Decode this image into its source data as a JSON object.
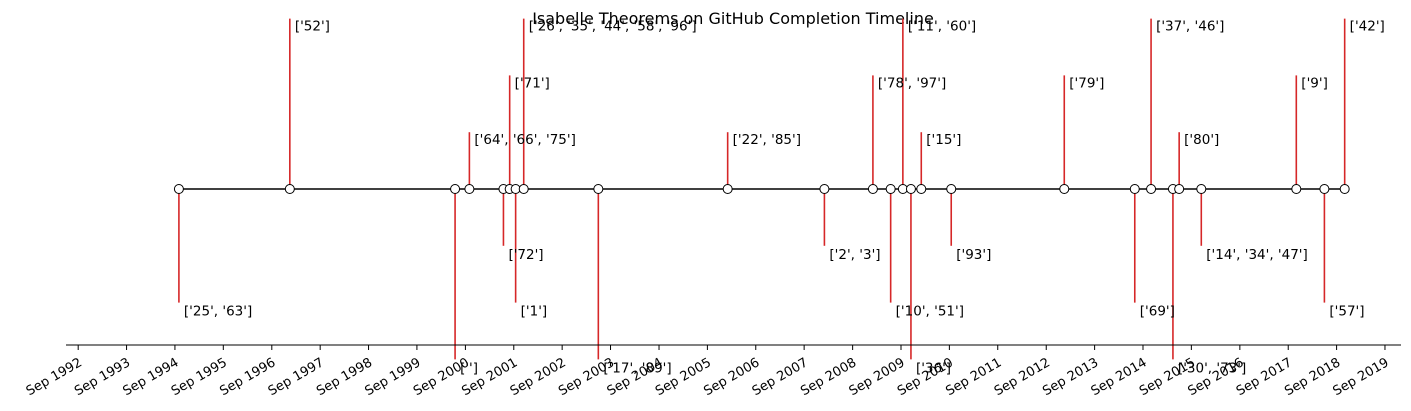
{
  "chart_data": {
    "type": "timeline",
    "title": "Isabelle Theorems on GitHub Completion Timeline",
    "x_ticks": [
      "Sep 1992",
      "Sep 1993",
      "Sep 1994",
      "Sep 1995",
      "Sep 1996",
      "Sep 1997",
      "Sep 1998",
      "Sep 1999",
      "Sep 2000",
      "Sep 2001",
      "Sep 2002",
      "Sep 2003",
      "Sep 2004",
      "Sep 2005",
      "Sep 2006",
      "Sep 2007",
      "Sep 2008",
      "Sep 2009",
      "Sep 2010",
      "Sep 2011",
      "Sep 2012",
      "Sep 2013",
      "Sep 2014",
      "Sep 2015",
      "Sep 2016",
      "Sep 2017",
      "Sep 2018",
      "Sep 2019"
    ],
    "xlim": [
      "1992-06-01",
      "2019-12-31"
    ],
    "stem_levels": [
      -3,
      -2,
      -1,
      1,
      2,
      3
    ],
    "events": [
      {
        "date": "1994-10-01",
        "level": -2,
        "label": "['25', '63']"
      },
      {
        "date": "1997-01-15",
        "level": 3,
        "label": "['52']"
      },
      {
        "date": "2000-06-15",
        "level": -3,
        "label": "['']"
      },
      {
        "date": "2000-10-01",
        "level": 1,
        "label": "['64', '66', '75']"
      },
      {
        "date": "2001-06-15",
        "level": -1,
        "label": "['72']"
      },
      {
        "date": "2001-08-01",
        "level": 2,
        "label": "['71']"
      },
      {
        "date": "2001-09-15",
        "level": -2,
        "label": "['1']"
      },
      {
        "date": "2001-11-15",
        "level": 3,
        "label": "['26', '35', '44', '58', '96']"
      },
      {
        "date": "2003-06-01",
        "level": -3,
        "label": "['17', '89']"
      },
      {
        "date": "2006-02-01",
        "level": 1,
        "label": "['22', '85']"
      },
      {
        "date": "2008-02-01",
        "level": -1,
        "label": "['2', '3']"
      },
      {
        "date": "2009-02-01",
        "level": 2,
        "label": "['78', '97']"
      },
      {
        "date": "2009-06-15",
        "level": -2,
        "label": "['10', '51']"
      },
      {
        "date": "2009-09-15",
        "level": 3,
        "label": "['11', '60']"
      },
      {
        "date": "2009-11-15",
        "level": -3,
        "label": "['36']"
      },
      {
        "date": "2010-02-01",
        "level": 1,
        "label": "['15']"
      },
      {
        "date": "2010-09-15",
        "level": -1,
        "label": "['93']"
      },
      {
        "date": "2013-01-15",
        "level": 2,
        "label": "['79']"
      },
      {
        "date": "2014-07-01",
        "level": -2,
        "label": "['69']"
      },
      {
        "date": "2014-11-01",
        "level": 3,
        "label": "['37', '46']"
      },
      {
        "date": "2015-04-15",
        "level": -3,
        "label": "['30', '73']"
      },
      {
        "date": "2015-06-01",
        "level": 1,
        "label": "['80']"
      },
      {
        "date": "2015-11-15",
        "level": -1,
        "label": "['14', '34', '47']"
      },
      {
        "date": "2017-11-01",
        "level": 2,
        "label": "['9']"
      },
      {
        "date": "2018-06-01",
        "level": -2,
        "label": "['57']"
      },
      {
        "date": "2018-11-01",
        "level": 3,
        "label": "['42']"
      }
    ],
    "colors": {
      "stem": "#d62728",
      "baseline": "#000000",
      "marker_fill": "#ffffff",
      "marker_edge": "#000000"
    },
    "grid": false,
    "legend": "none"
  }
}
